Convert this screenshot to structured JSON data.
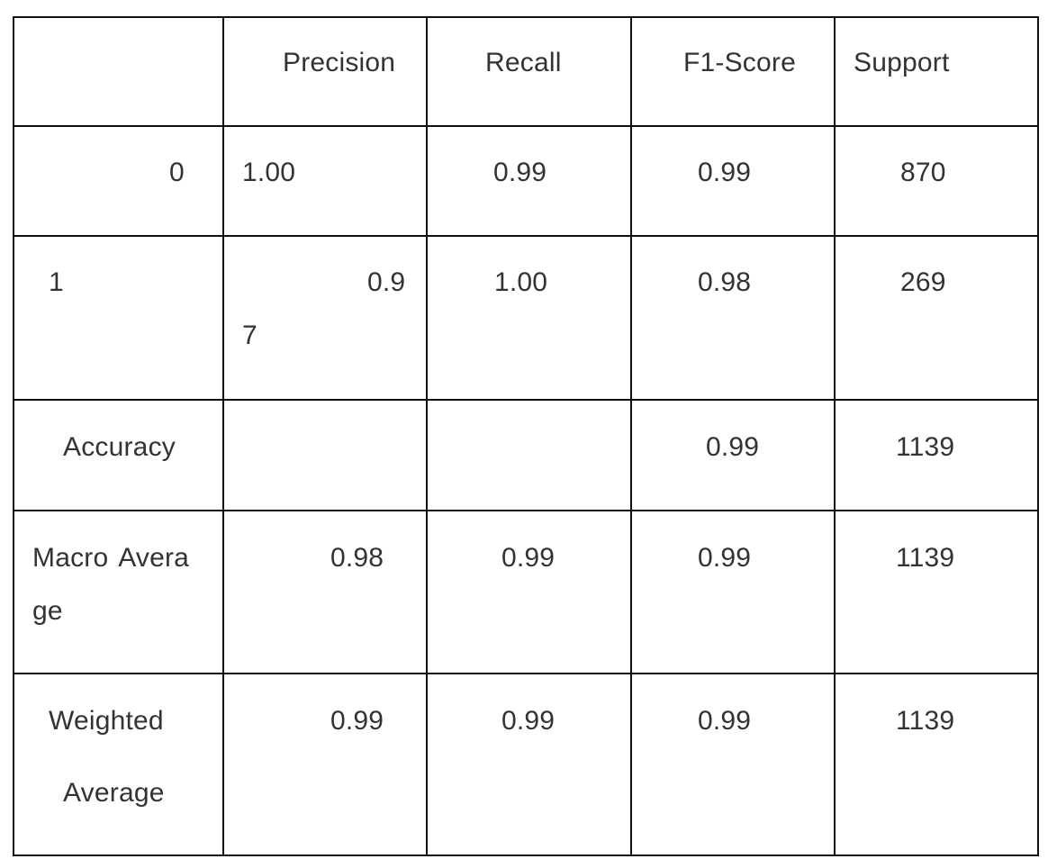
{
  "table": {
    "header": {
      "row_label": "",
      "precision": "Precision",
      "recall": "Recall",
      "f1_score": "F1-Score",
      "support": "Support"
    },
    "rows": [
      {
        "label": "0",
        "precision": "1.00",
        "recall": "0.99",
        "f1_score": "0.99",
        "support": "870"
      },
      {
        "label": "1",
        "precision_line1": "0.9",
        "precision_line2": "7",
        "recall": "1.00",
        "f1_score": "0.98",
        "support": "269"
      },
      {
        "label": "Accuracy",
        "precision": "",
        "recall": "",
        "f1_score": "0.99",
        "support": "1139"
      },
      {
        "label_line1": "Macro  Avera",
        "label_line2": "ge",
        "precision": "0.98",
        "recall": "0.99",
        "f1_score": "0.99",
        "support": "1139"
      },
      {
        "label_line1": "Weighted",
        "label_line2": "Average",
        "precision": "0.99",
        "recall": "0.99",
        "f1_score": "0.99",
        "support": "1139"
      }
    ]
  }
}
